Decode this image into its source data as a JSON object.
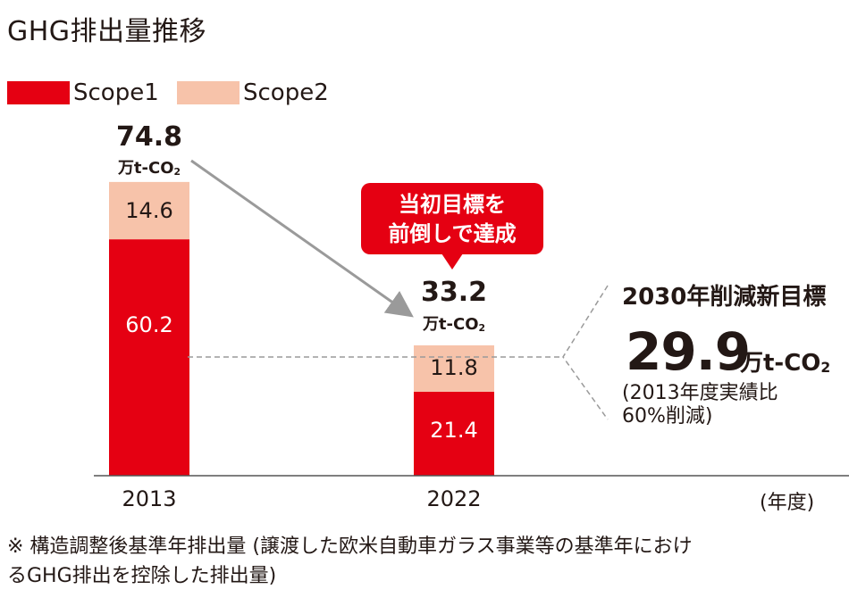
{
  "title": "GHG排出量推移",
  "legend": [
    {
      "label": "Scope1",
      "color": "#e50012"
    },
    {
      "label": "Scope2",
      "color": "#f7c3aa"
    }
  ],
  "chart_data": {
    "type": "bar",
    "stacked": true,
    "categories": [
      "2013",
      "2022"
    ],
    "series": [
      {
        "name": "Scope1",
        "values": [
          60.2,
          21.4
        ],
        "labels": [
          "60.2",
          "21.4"
        ],
        "color": "#e50012"
      },
      {
        "name": "Scope2",
        "values": [
          14.6,
          11.8
        ],
        "labels": [
          "14.6",
          "11.8"
        ],
        "color": "#f7c3aa"
      }
    ],
    "totals": [
      "74.8",
      "33.2"
    ],
    "total_unit": "万t-CO",
    "total_unit_sub": "2",
    "xlabel": "(年度)",
    "ylim": [
      0,
      80
    ],
    "grid": false,
    "legend_position": "top-left",
    "annotations": {
      "callout_lines": [
        "当初目標を",
        "前倒しで達成"
      ],
      "callout_color": "#e50012",
      "target_label": "2030年削減新目標",
      "target_value": "29.9",
      "target_unit": "万t-CO",
      "target_unit_sub": "2",
      "target_note_lines": [
        "(2013年度実績比",
        "60%削減)"
      ]
    }
  },
  "footnote_lines": [
    "※ 構造調整後基準年排出量 (譲渡した欧米自動車ガラス事業等の基準年におけ",
    "るGHG排出を控除した排出量)"
  ]
}
